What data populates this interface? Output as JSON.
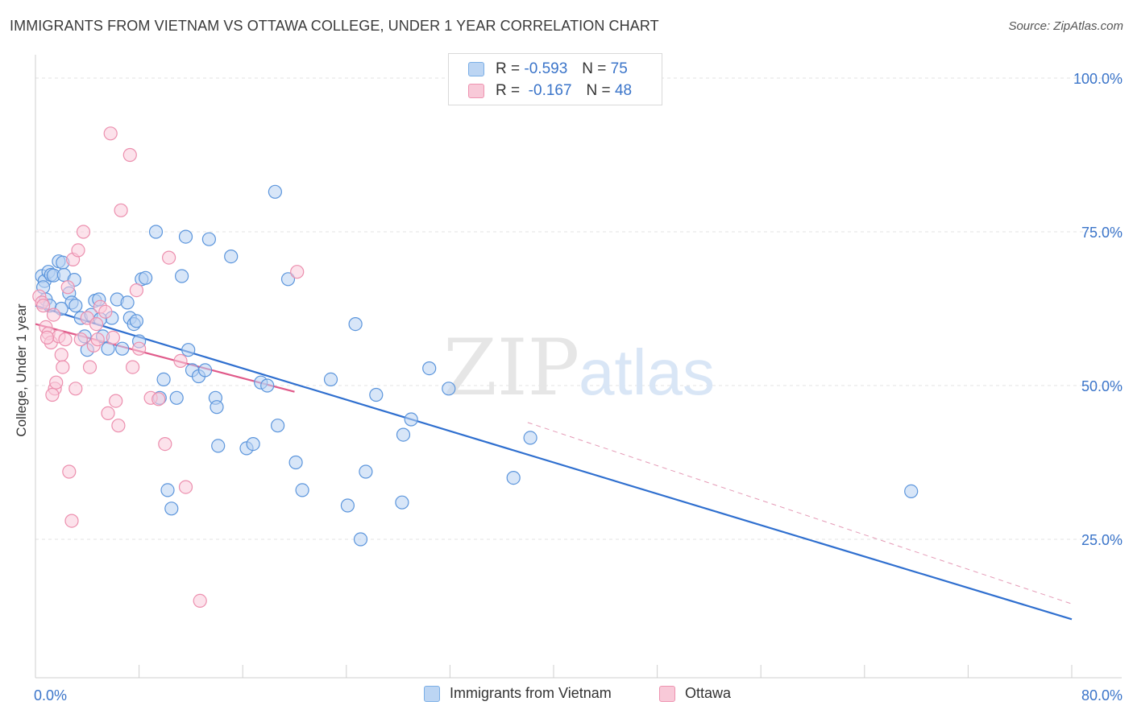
{
  "header": {
    "title": "IMMIGRANTS FROM VIETNAM VS OTTAWA COLLEGE, UNDER 1 YEAR CORRELATION CHART",
    "source": "Source: ZipAtlas.com"
  },
  "watermark": {
    "zip": "ZIP",
    "atlas": "atlas"
  },
  "legend_top": {
    "rows": [
      {
        "r_label": "R =",
        "r_value": "-0.593",
        "n_label": "N =",
        "n_value": "75",
        "color": "#7aaee6",
        "fill": "#bcd5f3"
      },
      {
        "r_label": "R =",
        "r_value": "-0.167",
        "n_label": "N =",
        "n_value": "48",
        "color": "#ee93b0",
        "fill": "#f8c9d8"
      }
    ]
  },
  "chart_data": {
    "type": "scatter",
    "title": "IMMIGRANTS FROM VIETNAM VS OTTAWA COLLEGE, UNDER 1 YEAR CORRELATION CHART",
    "xlabel": "",
    "ylabel": "College, Under 1 year",
    "xlim": [
      0,
      80
    ],
    "ylim": [
      0,
      105
    ],
    "x_ticks": [
      "0.0%",
      "80.0%"
    ],
    "y_ticks": [
      {
        "value": 25,
        "label": "25.0%"
      },
      {
        "value": 50,
        "label": "50.0%"
      },
      {
        "value": 75,
        "label": "75.0%"
      },
      {
        "value": 100,
        "label": "100.0%"
      }
    ],
    "grid": true,
    "legend_position": "top-center and bottom",
    "series": [
      {
        "name": "Immigrants from Vietnam",
        "color": "#5b95dc",
        "fill": "#b8d2f2",
        "trend": {
          "x0": 0,
          "y0": 63,
          "x1": 80,
          "y1": 12,
          "color": "#2f6fcf"
        },
        "trend_ext": {
          "x0": 38,
          "y0": 44,
          "x1": 80,
          "y1": 14.5,
          "color": "#e59ab6"
        },
        "points": [
          [
            0.5,
            67.8
          ],
          [
            0.7,
            67
          ],
          [
            0.6,
            66
          ],
          [
            0.8,
            64
          ],
          [
            1.0,
            68.5
          ],
          [
            1.2,
            68
          ],
          [
            1.4,
            67.9
          ],
          [
            1.8,
            70.2
          ],
          [
            2.1,
            70
          ],
          [
            2.2,
            68
          ],
          [
            2.6,
            65
          ],
          [
            3.0,
            67.2
          ],
          [
            2.8,
            63.5
          ],
          [
            3.1,
            63
          ],
          [
            3.5,
            61
          ],
          [
            3.8,
            58
          ],
          [
            4.0,
            55.8
          ],
          [
            4.3,
            61.5
          ],
          [
            4.6,
            63.8
          ],
          [
            4.9,
            64
          ],
          [
            5.2,
            58
          ],
          [
            5.6,
            56
          ],
          [
            5.9,
            61
          ],
          [
            6.3,
            64
          ],
          [
            6.7,
            56
          ],
          [
            7.1,
            63.5
          ],
          [
            7.3,
            61
          ],
          [
            7.6,
            60
          ],
          [
            7.8,
            60.5
          ],
          [
            8.0,
            57.2
          ],
          [
            8.2,
            67.3
          ],
          [
            8.5,
            67.5
          ],
          [
            9.3,
            75
          ],
          [
            9.6,
            48
          ],
          [
            9.9,
            51
          ],
          [
            10.2,
            33
          ],
          [
            10.5,
            30
          ],
          [
            10.9,
            48
          ],
          [
            11.3,
            67.8
          ],
          [
            11.6,
            74.2
          ],
          [
            11.8,
            55.8
          ],
          [
            12.1,
            52.5
          ],
          [
            12.6,
            51.5
          ],
          [
            13.1,
            52.5
          ],
          [
            13.4,
            73.8
          ],
          [
            13.9,
            48
          ],
          [
            14.0,
            46.5
          ],
          [
            14.1,
            40.2
          ],
          [
            15.1,
            71
          ],
          [
            16.3,
            39.8
          ],
          [
            16.8,
            40.5
          ],
          [
            17.4,
            50.5
          ],
          [
            17.9,
            50
          ],
          [
            18.5,
            81.5
          ],
          [
            18.7,
            43.5
          ],
          [
            19.5,
            67.3
          ],
          [
            20.1,
            37.5
          ],
          [
            20.6,
            33
          ],
          [
            22.8,
            51
          ],
          [
            24.1,
            30.5
          ],
          [
            24.7,
            60
          ],
          [
            25.1,
            25
          ],
          [
            25.5,
            36
          ],
          [
            26.3,
            48.5
          ],
          [
            28.3,
            31
          ],
          [
            28.4,
            42
          ],
          [
            29.0,
            44.5
          ],
          [
            30.4,
            52.8
          ],
          [
            31.9,
            49.5
          ],
          [
            36.9,
            35
          ],
          [
            38.2,
            41.5
          ],
          [
            1.1,
            63
          ],
          [
            2.0,
            62.5
          ],
          [
            5.0,
            60.8
          ],
          [
            67.6,
            32.8
          ]
        ]
      },
      {
        "name": "Ottawa",
        "color": "#ec8fae",
        "fill": "#f9cbdb",
        "trend": {
          "x0": 0,
          "y0": 60,
          "x1": 20,
          "y1": 49,
          "color": "#e05a8a"
        },
        "points": [
          [
            0.3,
            64.5
          ],
          [
            0.5,
            63.5
          ],
          [
            0.6,
            63
          ],
          [
            0.8,
            59.5
          ],
          [
            1.0,
            58.5
          ],
          [
            1.2,
            57
          ],
          [
            1.4,
            61.5
          ],
          [
            1.5,
            49.5
          ],
          [
            1.6,
            50.5
          ],
          [
            1.8,
            58
          ],
          [
            2.0,
            55
          ],
          [
            2.1,
            53
          ],
          [
            2.3,
            57.5
          ],
          [
            2.5,
            66
          ],
          [
            2.6,
            36
          ],
          [
            2.8,
            28
          ],
          [
            2.9,
            70.5
          ],
          [
            3.1,
            49.5
          ],
          [
            3.3,
            72
          ],
          [
            3.5,
            57.5
          ],
          [
            3.7,
            75
          ],
          [
            4.0,
            61
          ],
          [
            4.2,
            53
          ],
          [
            4.5,
            56.5
          ],
          [
            4.7,
            60
          ],
          [
            5.0,
            62.8
          ],
          [
            5.4,
            62
          ],
          [
            5.6,
            45.5
          ],
          [
            5.8,
            91
          ],
          [
            6.0,
            57.8
          ],
          [
            6.2,
            47.5
          ],
          [
            6.4,
            43.5
          ],
          [
            6.6,
            78.5
          ],
          [
            7.3,
            87.5
          ],
          [
            7.5,
            53
          ],
          [
            7.8,
            65.5
          ],
          [
            8.0,
            56
          ],
          [
            8.9,
            48
          ],
          [
            9.5,
            47.8
          ],
          [
            10.0,
            40.5
          ],
          [
            10.3,
            70.8
          ],
          [
            11.2,
            54
          ],
          [
            11.6,
            33.5
          ],
          [
            12.7,
            15
          ],
          [
            20.2,
            68.5
          ],
          [
            0.9,
            57.8
          ],
          [
            1.3,
            48.5
          ],
          [
            4.8,
            57.5
          ]
        ]
      }
    ]
  },
  "legend_bottom": {
    "items": [
      {
        "label": "Immigrants from Vietnam",
        "color": "#7aaee6",
        "fill": "#bcd5f3"
      },
      {
        "label": "Ottawa",
        "color": "#ee93b0",
        "fill": "#f8c9d8"
      }
    ]
  }
}
